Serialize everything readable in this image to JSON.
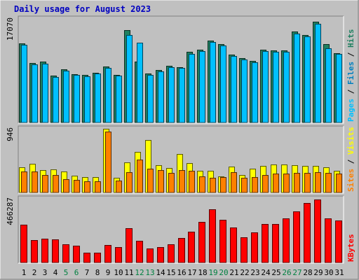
{
  "chart_data": {
    "type": "bar",
    "title": "Daily usage for August 2023",
    "days": [
      "1",
      "2",
      "3",
      "4",
      "5",
      "6",
      "7",
      "8",
      "9",
      "10",
      "11",
      "12",
      "13",
      "14",
      "15",
      "16",
      "17",
      "18",
      "19",
      "20",
      "21",
      "22",
      "23",
      "24",
      "25",
      "26",
      "27",
      "28",
      "29",
      "30",
      "31"
    ],
    "weekend_days": [
      "5",
      "6",
      "12",
      "13",
      "19",
      "20",
      "26",
      "27"
    ],
    "panels": [
      {
        "name": "hits-files-pages",
        "ymax_label": "17070",
        "ylim": [
          0,
          17070
        ],
        "legend": [
          {
            "label": "Pages",
            "color": "#00c0ff"
          },
          {
            "label": "Files",
            "color": "#0080c0"
          },
          {
            "label": "Hits",
            "color": "#208060"
          }
        ],
        "separator": " / ",
        "series": [
          {
            "name": "Hits",
            "color": "#208060",
            "values": [
              13080,
              9800,
              9980,
              7700,
              8770,
              7960,
              7850,
              8240,
              9240,
              7900,
              15280,
              10080,
              8110,
              8650,
              9330,
              9160,
              11620,
              11950,
              13480,
              12970,
              11180,
              10650,
              10150,
              11950,
              11850,
              11850,
              14950,
              14380,
              16660,
              12880,
              11400
            ]
          },
          {
            "name": "Files",
            "color": "#00c0ff",
            "values": [
              12780,
              9530,
              9700,
              7490,
              8580,
              7840,
              7620,
              8070,
              8970,
              7710,
              14450,
              13200,
              7890,
              8420,
              9130,
              8960,
              11350,
              11740,
              13300,
              12670,
              10960,
              10390,
              9920,
              11740,
              11610,
              11610,
              14670,
              14150,
              16300,
              12260,
              11250
            ]
          }
        ]
      },
      {
        "name": "visits-sites",
        "ymax_label": "946",
        "ylim": [
          0,
          946
        ],
        "legend": [
          {
            "label": "Sites",
            "color": "#ff8000"
          },
          {
            "label": "Visits",
            "color": "#ffff00"
          }
        ],
        "separator": " / ",
        "series": [
          {
            "name": "Visits",
            "color": "#ffff00",
            "values": [
              373,
              425,
              337,
              345,
              315,
              249,
              232,
              232,
              946,
              219,
              445,
              600,
              778,
              410,
              367,
              568,
              434,
              318,
              324,
              243,
              387,
              261,
              358,
              398,
              420,
              420,
              405,
              398,
              390,
              378,
              318
            ]
          },
          {
            "name": "Sites",
            "color": "#ff8000",
            "values": [
              307,
              310,
              258,
              257,
              200,
              190,
              170,
              166,
              900,
              175,
              300,
              490,
              350,
              328,
              293,
              335,
              318,
              238,
              221,
              227,
              299,
              222,
              233,
              265,
              280,
              280,
              293,
              287,
              301,
              294,
              279
            ]
          }
        ]
      },
      {
        "name": "kbytes",
        "ymax_label": "466287",
        "ylim": [
          0,
          466287
        ],
        "legend": [
          {
            "label": "KBytes",
            "color": "#ff0000"
          }
        ],
        "separator": "",
        "series": [
          {
            "name": "KBytes",
            "color": "#ff0000",
            "values": [
              278000,
              165000,
              175000,
              170000,
              133000,
              123000,
              74000,
              74000,
              127000,
              114000,
              250000,
              157000,
              103000,
              112000,
              131000,
              181000,
              227000,
              298000,
              390000,
              313000,
              255000,
              184000,
              222000,
              280000,
              283000,
              323000,
              373000,
              433000,
              461000,
              323000,
              310000
            ]
          }
        ]
      }
    ],
    "grid": false,
    "legend_position": "right"
  }
}
